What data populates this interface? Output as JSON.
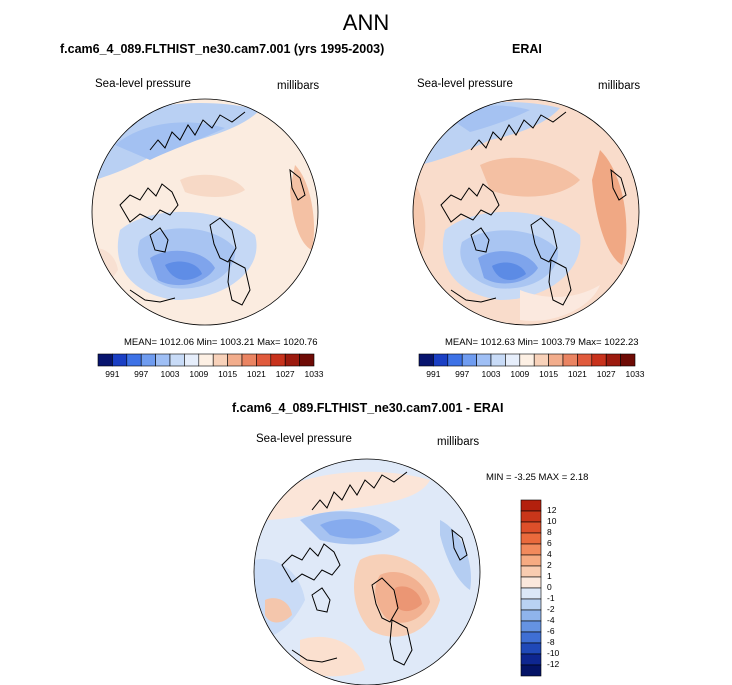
{
  "page_title": "ANN",
  "chart_data": [
    {
      "type": "heatmap",
      "projection": "north-polar-stereographic",
      "title": "f.cam6_4_089.FLTHIST_ne30.cam7.001 (yrs 1995-2003)",
      "left_label": "Sea-level pressure",
      "right_label": "millibars",
      "stats_text": "MEAN= 1012.06  Min= 1003.21  Max= 1020.76",
      "mean": 1012.06,
      "min": 1003.21,
      "max": 1020.76,
      "colorbar_ticks": [
        "991",
        "997",
        "1003",
        "1009",
        "1015",
        "1021",
        "1027",
        "1033"
      ],
      "colorbar_colors": [
        "#08146e",
        "#1a3fc4",
        "#3d72e6",
        "#6f9cf0",
        "#9fbff5",
        "#c8dbf7",
        "#e6eefb",
        "#fdf0e4",
        "#f8d2ba",
        "#f2ad8c",
        "#ea8462",
        "#e05a3c",
        "#c8321c",
        "#9c1a0e",
        "#6e0b05"
      ]
    },
    {
      "type": "heatmap",
      "projection": "north-polar-stereographic",
      "title": "ERAI",
      "left_label": "Sea-level pressure",
      "right_label": "millibars",
      "stats_text": "MEAN= 1012.63  Min= 1003.79  Max= 1022.23",
      "mean": 1012.63,
      "min": 1003.79,
      "max": 1022.23,
      "colorbar_ticks": [
        "991",
        "997",
        "1003",
        "1009",
        "1015",
        "1021",
        "1027",
        "1033"
      ],
      "colorbar_colors": [
        "#08146e",
        "#1a3fc4",
        "#3d72e6",
        "#6f9cf0",
        "#9fbff5",
        "#c8dbf7",
        "#e6eefb",
        "#fdf0e4",
        "#f8d2ba",
        "#f2ad8c",
        "#ea8462",
        "#e05a3c",
        "#c8321c",
        "#9c1a0e",
        "#6e0b05"
      ]
    },
    {
      "type": "heatmap",
      "projection": "north-polar-stereographic",
      "title": "f.cam6_4_089.FLTHIST_ne30.cam7.001 - ERAI",
      "left_label": "Sea-level pressure",
      "right_label": "millibars",
      "stats_text": "MIN =  -3.25 MAX =   2.18",
      "min": -3.25,
      "max": 2.18,
      "colorbar_ticks": [
        "12",
        "10",
        "8",
        "6",
        "4",
        "2",
        "1",
        "0",
        "-1",
        "-2",
        "-4",
        "-6",
        "-8",
        "-10",
        "-12"
      ],
      "colorbar_colors": [
        "#b3200d",
        "#c9361a",
        "#dd4f2a",
        "#ea6a3c",
        "#f28a5c",
        "#f6ab82",
        "#f9ccb0",
        "#fbe8dc",
        "#dce8f7",
        "#b9d2f2",
        "#8fb4ec",
        "#6593e2",
        "#3f6fd4",
        "#2049b8",
        "#0e2690",
        "#041366"
      ]
    }
  ]
}
